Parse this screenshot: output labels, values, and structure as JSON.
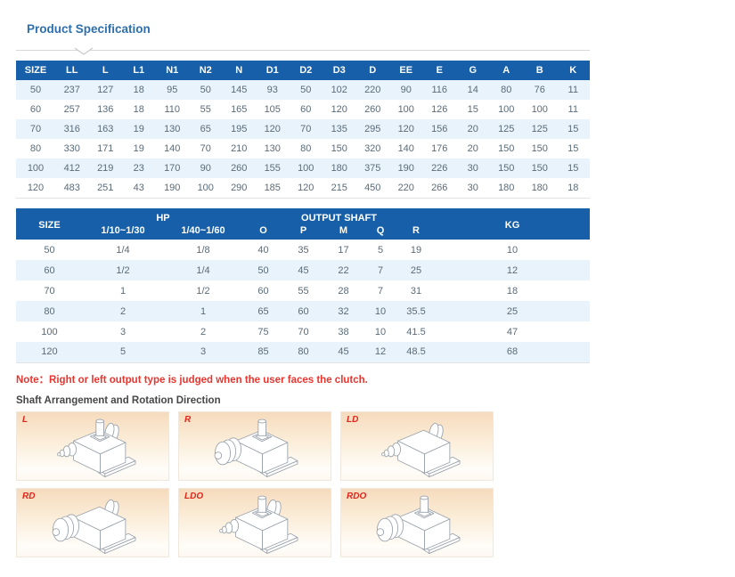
{
  "page": {
    "title": "Product Specification"
  },
  "icons": {
    "divider_chevron": "chevron-down"
  },
  "colors": {
    "header_blue": "#1760a9",
    "row_shade_blue": "#e8f3fb",
    "title_blue": "#2e6fad",
    "note_red": "#e8352e",
    "shaft_label_red": "#e0261c",
    "cell_peach": "#f6dbbd"
  },
  "dim_table": {
    "headers": [
      "SIZE",
      "LL",
      "L",
      "L1",
      "N1",
      "N2",
      "N",
      "D1",
      "D2",
      "D3",
      "D",
      "EE",
      "E",
      "G",
      "A",
      "B",
      "K"
    ],
    "rows": [
      [
        "50",
        "237",
        "127",
        "18",
        "95",
        "50",
        "145",
        "93",
        "50",
        "102",
        "220",
        "90",
        "116",
        "14",
        "80",
        "76",
        "11"
      ],
      [
        "60",
        "257",
        "136",
        "18",
        "110",
        "55",
        "165",
        "105",
        "60",
        "120",
        "260",
        "100",
        "126",
        "15",
        "100",
        "100",
        "11"
      ],
      [
        "70",
        "316",
        "163",
        "19",
        "130",
        "65",
        "195",
        "120",
        "70",
        "135",
        "295",
        "120",
        "156",
        "20",
        "125",
        "125",
        "15"
      ],
      [
        "80",
        "330",
        "171",
        "19",
        "140",
        "70",
        "210",
        "130",
        "80",
        "150",
        "320",
        "140",
        "176",
        "20",
        "150",
        "150",
        "15"
      ],
      [
        "100",
        "412",
        "219",
        "23",
        "170",
        "90",
        "260",
        "155",
        "100",
        "180",
        "375",
        "190",
        "226",
        "30",
        "150",
        "150",
        "15"
      ],
      [
        "120",
        "483",
        "251",
        "43",
        "190",
        "100",
        "290",
        "185",
        "120",
        "215",
        "450",
        "220",
        "266",
        "30",
        "180",
        "180",
        "18"
      ]
    ]
  },
  "hp_table": {
    "col_size": "SIZE",
    "col_hp": "HP",
    "col_output": "OUTPUT SHAFT",
    "col_kg": "KG",
    "sub_headers": [
      "1/10~1/30",
      "1/40~1/60",
      "O",
      "P",
      "M",
      "Q",
      "R"
    ],
    "rows": [
      [
        "50",
        "1/4",
        "1/8",
        "40",
        "35",
        "17",
        "5",
        "19",
        "10"
      ],
      [
        "60",
        "1/2",
        "1/4",
        "50",
        "45",
        "22",
        "7",
        "25",
        "12"
      ],
      [
        "70",
        "1",
        "1/2",
        "60",
        "55",
        "28",
        "7",
        "31",
        "18"
      ],
      [
        "80",
        "2",
        "1",
        "65",
        "60",
        "32",
        "10",
        "35.5",
        "25"
      ],
      [
        "100",
        "3",
        "2",
        "75",
        "70",
        "38",
        "10",
        "41.5",
        "47"
      ],
      [
        "120",
        "5",
        "3",
        "85",
        "80",
        "45",
        "12",
        "48.5",
        "68"
      ]
    ]
  },
  "note": {
    "text": "Note：Right or left output type is judged when the user faces the clutch."
  },
  "shaft_section": {
    "title": "Shaft Arrangement and Rotation Direction",
    "cells": [
      {
        "label": "L"
      },
      {
        "label": "R"
      },
      {
        "label": "LD"
      },
      {
        "label": "RD"
      },
      {
        "label": "LDO"
      },
      {
        "label": "RDO"
      }
    ]
  }
}
